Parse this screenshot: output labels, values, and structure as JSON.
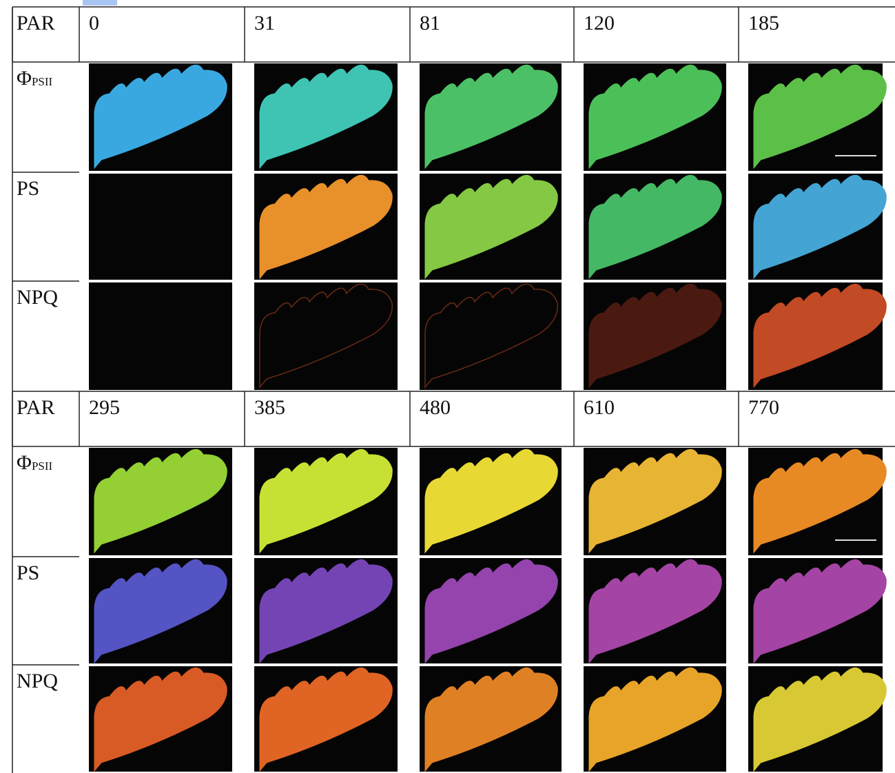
{
  "blocks": [
    {
      "header": {
        "label": "PAR",
        "values": [
          0,
          31,
          81,
          120,
          185
        ]
      },
      "rows": [
        {
          "label": "Φ",
          "sub": "PSII"
        },
        {
          "label": "PS"
        },
        {
          "label": "NPQ"
        }
      ]
    },
    {
      "header": {
        "label": "PAR",
        "values": [
          295,
          385,
          480,
          610,
          770
        ]
      },
      "rows": [
        {
          "label": "Φ",
          "sub": "PSII"
        },
        {
          "label": "PS"
        },
        {
          "label": "NPQ"
        }
      ]
    }
  ]
}
